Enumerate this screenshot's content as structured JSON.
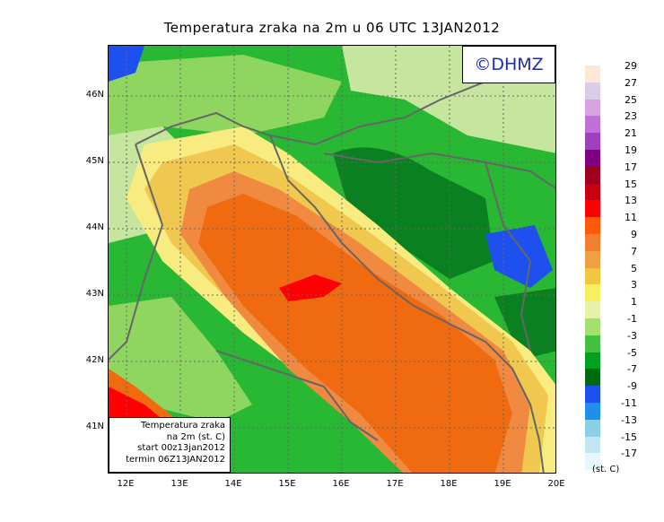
{
  "title": "Temperatura zraka na 2m u 06 UTC 13JAN2012",
  "brand": "©DHMZ",
  "info": {
    "line1": "Temperatura zraka",
    "line2": "na 2m (st. C)",
    "line3": "start 00z13jan2012",
    "line4": "termin 06Z13JAN2012"
  },
  "axes": {
    "lat_labels": [
      "46N",
      "45N",
      "44N",
      "43N",
      "42N",
      "41N"
    ],
    "lon_labels": [
      "12E",
      "13E",
      "14E",
      "15E",
      "16E",
      "17E",
      "18E",
      "19E",
      "20E"
    ]
  },
  "legend": {
    "unit": "(st. C)",
    "labels": [
      "29",
      "27",
      "25",
      "23",
      "21",
      "19",
      "17",
      "15",
      "13",
      "11",
      "9",
      "7",
      "5",
      "3",
      "1",
      "-1",
      "-3",
      "-5",
      "-7",
      "-9",
      "-11",
      "-13",
      "-15",
      "-17"
    ],
    "colors": [
      "#fde8d6",
      "#dccde6",
      "#d6a2e0",
      "#c070d8",
      "#a040c0",
      "#800080",
      "#a00020",
      "#c80010",
      "#ff0000",
      "#ff5a0a",
      "#f08030",
      "#f0a040",
      "#f0c840",
      "#f8f060",
      "#e6f2a8",
      "#a4e070",
      "#44c040",
      "#00a020",
      "#006a10",
      "#1e50f0",
      "#1e90e8",
      "#8ccfe6",
      "#c0e6f2",
      "#e6f8fc"
    ]
  },
  "colors": {
    "sea_warm": "#f06a10",
    "sea_mid": "#f08a40",
    "sea_hot": "#ff0000",
    "coast_warm": "#f0c850",
    "coast_mild": "#f8ec80",
    "land_pale": "#c6e6a0",
    "land_light": "#8ed660",
    "land_green": "#28b834",
    "land_dark": "#0a8020",
    "cold_blue": "#1e50f0",
    "border": "#666666"
  }
}
